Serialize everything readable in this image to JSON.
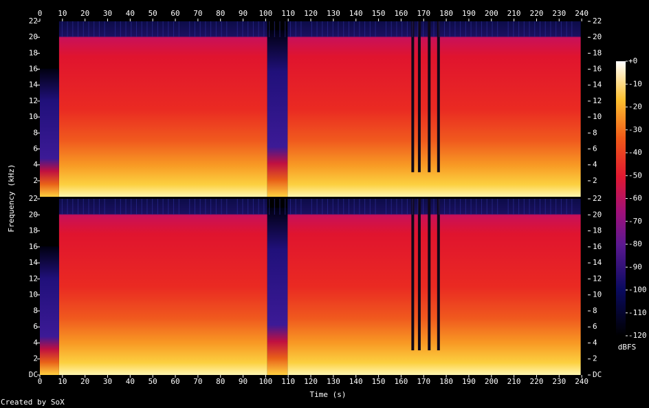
{
  "chart_data": {
    "type": "spectrogram",
    "xlabel": "Time (s)",
    "ylabel": "Frequency (kHz)",
    "xlim": [
      0,
      242.7
    ],
    "xticks": [
      0,
      10,
      20,
      30,
      40,
      50,
      60,
      70,
      80,
      90,
      100,
      110,
      120,
      130,
      140,
      150,
      160,
      170,
      180,
      190,
      200,
      210,
      220,
      230,
      240
    ],
    "channels": [
      {
        "ylim": [
          0,
          22
        ],
        "yticks": [
          2,
          4,
          6,
          8,
          10,
          12,
          14,
          16,
          18,
          20,
          22
        ]
      },
      {
        "ylim": [
          0,
          22
        ],
        "yticks": [
          {
            "value": 0,
            "label": "DC"
          },
          2,
          4,
          6,
          8,
          10,
          12,
          14,
          16,
          18,
          20,
          22
        ]
      }
    ],
    "colorbar": {
      "label": "dBFS",
      "lim": [
        -120,
        0
      ],
      "ticks": [
        {
          "value": 0,
          "label": "+0"
        },
        -10,
        -20,
        -30,
        -40,
        -50,
        -60,
        -70,
        -80,
        -90,
        -100,
        -110,
        -120
      ]
    },
    "credit": "Created by SoX"
  }
}
